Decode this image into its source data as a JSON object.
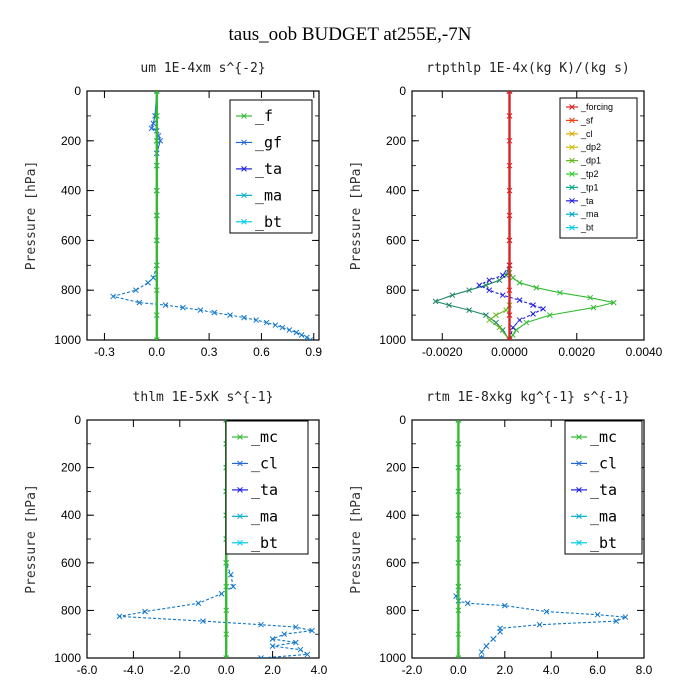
{
  "title": "taus_oob  BUDGET at255E,-7N",
  "chart_data": [
    {
      "type": "line",
      "title": "um   1E-4xm s^{-2}",
      "ylabel": "Pressure [hPa]",
      "xlim": [
        -0.4,
        0.93
      ],
      "ylim": [
        1000,
        0
      ],
      "xticks": [
        -0.3,
        0.0,
        0.3,
        0.6,
        0.9
      ],
      "xtick_labels": [
        "-0.3",
        "0.0",
        "0.3",
        "0.6",
        "0.9"
      ],
      "yticks": [
        0,
        200,
        400,
        600,
        800,
        1000
      ],
      "ytick_labels": [
        "0",
        "200",
        "400",
        "600",
        "800",
        "1000"
      ],
      "legend_style": "big",
      "legend": [
        {
          "label": "_f",
          "color": "#33bb33"
        },
        {
          "label": "_gf",
          "color": "#2266dd"
        },
        {
          "label": "_ta",
          "color": "#2222dd"
        },
        {
          "label": "_ma",
          "color": "#00aacc"
        },
        {
          "label": "_bt",
          "color": "#00ccee"
        }
      ],
      "series": [
        {
          "name": "_bt",
          "color": "#1177cc",
          "dashed": true,
          "marker": "x",
          "x": [
            0.0,
            0.0,
            0.0,
            0.0,
            0.0,
            0.0,
            0.0,
            0.0,
            -0.02,
            -0.05,
            -0.12,
            -0.25,
            -0.1,
            0.05,
            0.15,
            0.25,
            0.33,
            0.42,
            0.5,
            0.57,
            0.63,
            0.68,
            0.72,
            0.76,
            0.8,
            0.83,
            0.86,
            0.88
          ],
          "y": [
            0,
            100,
            200,
            300,
            400,
            500,
            600,
            700,
            750,
            770,
            800,
            825,
            850,
            860,
            870,
            880,
            890,
            900,
            910,
            920,
            930,
            940,
            950,
            960,
            970,
            980,
            990,
            1000
          ]
        },
        {
          "name": "_gf",
          "color": "#2266dd",
          "dashed": false,
          "marker": "x",
          "x": [
            0.0,
            -0.01,
            -0.02,
            -0.03,
            0.0,
            0.01,
            0.02,
            0.0
          ],
          "y": [
            0,
            100,
            130,
            150,
            160,
            180,
            200,
            250
          ]
        },
        {
          "name": "_f",
          "color": "#33bb33",
          "dashed": false,
          "marker": "x",
          "thick": true,
          "x": [
            0.0,
            0.0,
            0.0,
            0.0,
            0.0,
            0.0,
            0.0,
            0.0,
            0.0,
            0.0,
            0.0
          ],
          "y": [
            0,
            100,
            200,
            300,
            400,
            500,
            600,
            700,
            800,
            900,
            1000
          ]
        }
      ]
    },
    {
      "type": "line",
      "title": "rtpthlp   1E-4x(kg K)/(kg s)",
      "ylabel": "Pressure [hPa]",
      "xlim": [
        -0.0029,
        0.004
      ],
      "ylim": [
        1000,
        0
      ],
      "xticks": [
        -0.002,
        0.0,
        0.002,
        0.004
      ],
      "xtick_labels": [
        "-0.0020",
        "0.0000",
        "0.0020",
        "0.0040"
      ],
      "yticks": [
        0,
        200,
        400,
        600,
        800,
        1000
      ],
      "ytick_labels": [
        "0",
        "200",
        "400",
        "600",
        "800",
        "1000"
      ],
      "legend_style": "small",
      "legend": [
        {
          "label": "_forcing",
          "color": "#dd2222"
        },
        {
          "label": "_sf",
          "color": "#ee4411"
        },
        {
          "label": "_cl",
          "color": "#ddaa00"
        },
        {
          "label": "_dp2",
          "color": "#ccbb00"
        },
        {
          "label": "_dp1",
          "color": "#66bb22"
        },
        {
          "label": "_tp2",
          "color": "#33cc33"
        },
        {
          "label": "_tp1",
          "color": "#00aa88"
        },
        {
          "label": "_ta",
          "color": "#2222dd"
        },
        {
          "label": "_ma",
          "color": "#00aacc"
        },
        {
          "label": "_bt",
          "color": "#00ccee"
        }
      ],
      "series": [
        {
          "name": "_tp2",
          "color": "#33bb33",
          "dashed": false,
          "marker": "x",
          "x": [
            0.0,
            0.0,
            0.0,
            0.0,
            0.0001,
            0.0003,
            0.0008,
            0.0015,
            0.0024,
            0.0031,
            0.0025,
            0.0012,
            0.0005,
            0.0002,
            0.0001,
            0.0
          ],
          "y": [
            0,
            600,
            700,
            730,
            750,
            770,
            790,
            810,
            830,
            850,
            870,
            900,
            930,
            960,
            980,
            1000
          ]
        },
        {
          "name": "_tp1",
          "color": "#228866",
          "dashed": false,
          "marker": "x",
          "x": [
            0.0,
            0.0,
            -0.0001,
            -0.0003,
            -0.0007,
            -0.0012,
            -0.0017,
            -0.0022,
            -0.0018,
            -0.0012,
            -0.0007,
            -0.0004,
            -0.0002,
            0.0
          ],
          "y": [
            0,
            700,
            740,
            760,
            780,
            800,
            820,
            845,
            860,
            880,
            900,
            930,
            960,
            1000
          ]
        },
        {
          "name": "_ta",
          "color": "#2222dd",
          "dashed": true,
          "marker": "x",
          "x": [
            0.0,
            0.0,
            -0.0002,
            -0.0006,
            -0.0009,
            -0.0006,
            -0.0002,
            0.0003,
            0.0007,
            0.001,
            0.0007,
            0.0003,
            0.0001,
            0.0
          ],
          "y": [
            0,
            700,
            740,
            760,
            780,
            800,
            820,
            840,
            860,
            875,
            895,
            920,
            950,
            1000
          ]
        },
        {
          "name": "_dp1",
          "color": "#66bb22",
          "dashed": false,
          "marker": "x",
          "x": [
            0.0,
            -0.0001,
            -0.0004,
            -0.0006,
            -0.0003,
            0.0
          ],
          "y": [
            860,
            880,
            900,
            920,
            950,
            1000
          ]
        },
        {
          "name": "_forcing",
          "color": "#dd2222",
          "dashed": false,
          "marker": "x",
          "thick": true,
          "x": [
            0.0,
            0.0,
            0.0,
            0.0,
            0.0,
            0.0,
            0.0,
            0.0,
            0.0,
            0.0,
            0.0
          ],
          "y": [
            0,
            100,
            200,
            300,
            400,
            500,
            600,
            700,
            800,
            900,
            1000
          ]
        }
      ]
    },
    {
      "type": "line",
      "title": "thlm   1E-5xK s^{-1}",
      "ylabel": "Pressure [hPa]",
      "xlim": [
        -6.0,
        4.0
      ],
      "ylim": [
        1000,
        0
      ],
      "xticks": [
        -6,
        -4,
        -2,
        0,
        2,
        4
      ],
      "xtick_labels": [
        "-6.0",
        "-4.0",
        "-2.0",
        "0.0",
        "2.0",
        "4.0"
      ],
      "yticks": [
        0,
        200,
        400,
        600,
        800,
        1000
      ],
      "ytick_labels": [
        "0",
        "200",
        "400",
        "600",
        "800",
        "1000"
      ],
      "legend_style": "big",
      "legend": [
        {
          "label": "_mc",
          "color": "#33bb33"
        },
        {
          "label": "_cl",
          "color": "#2266dd"
        },
        {
          "label": "_ta",
          "color": "#2222dd"
        },
        {
          "label": "_ma",
          "color": "#00aacc"
        },
        {
          "label": "_bt",
          "color": "#00ccee"
        }
      ],
      "series": [
        {
          "name": "_bt",
          "color": "#1177cc",
          "dashed": true,
          "marker": "x",
          "x": [
            0.0,
            0.0,
            0.0,
            0.0,
            0.0,
            0.0,
            0.0,
            0.2,
            0.3,
            -0.2,
            -1.2,
            -3.5,
            -4.6,
            -1.0,
            1.5,
            3.0,
            3.7,
            2.5,
            2.0,
            3.0,
            2.0,
            3.2,
            3.5,
            1.5
          ],
          "y": [
            0,
            100,
            200,
            300,
            400,
            500,
            600,
            650,
            700,
            730,
            770,
            805,
            825,
            845,
            860,
            870,
            885,
            900,
            920,
            935,
            950,
            965,
            985,
            1000
          ]
        },
        {
          "name": "_mc",
          "color": "#33bb33",
          "dashed": false,
          "marker": "x",
          "thick": true,
          "x": [
            0.0,
            0.0,
            0.0,
            0.0,
            0.0,
            0.0,
            0.0,
            0.0,
            0.0,
            0.0,
            0.0
          ],
          "y": [
            0,
            100,
            200,
            300,
            400,
            500,
            600,
            700,
            800,
            900,
            1000
          ]
        }
      ]
    },
    {
      "type": "line",
      "title": "rtm   1E-8xkg kg^{-1} s^{-1}",
      "ylabel": "Pressure [hPa]",
      "xlim": [
        -2.0,
        8.0
      ],
      "ylim": [
        1000,
        0
      ],
      "xticks": [
        -2,
        0,
        2,
        4,
        6,
        8
      ],
      "xtick_labels": [
        "-2.0",
        "0.0",
        "2.0",
        "4.0",
        "6.0",
        "8.0"
      ],
      "yticks": [
        0,
        200,
        400,
        600,
        800,
        1000
      ],
      "ytick_labels": [
        "0",
        "200",
        "400",
        "600",
        "800",
        "1000"
      ],
      "legend_style": "big",
      "legend": [
        {
          "label": "_mc",
          "color": "#33bb33"
        },
        {
          "label": "_cl",
          "color": "#2266dd"
        },
        {
          "label": "_ta",
          "color": "#2222dd"
        },
        {
          "label": "_ma",
          "color": "#00aacc"
        },
        {
          "label": "_bt",
          "color": "#00ccee"
        }
      ],
      "series": [
        {
          "name": "_bt",
          "color": "#1177cc",
          "dashed": true,
          "marker": "x",
          "x": [
            0.0,
            0.0,
            0.0,
            0.0,
            0.0,
            0.0,
            0.0,
            0.0,
            -0.1,
            0.0,
            0.4,
            2.0,
            3.8,
            6.0,
            7.2,
            6.8,
            3.5,
            1.8,
            1.8,
            1.5,
            1.2,
            1.0,
            1.0
          ],
          "y": [
            0,
            100,
            200,
            300,
            400,
            500,
            600,
            700,
            740,
            760,
            770,
            780,
            805,
            818,
            828,
            845,
            860,
            875,
            890,
            920,
            950,
            975,
            1000
          ]
        },
        {
          "name": "_mc",
          "color": "#33bb33",
          "dashed": false,
          "marker": "x",
          "thick": true,
          "x": [
            0.0,
            0.0,
            0.0,
            0.0,
            0.0,
            0.0,
            0.0,
            0.0,
            0.0,
            0.0,
            0.0
          ],
          "y": [
            0,
            100,
            200,
            300,
            400,
            500,
            600,
            700,
            800,
            900,
            1000
          ]
        }
      ]
    }
  ]
}
